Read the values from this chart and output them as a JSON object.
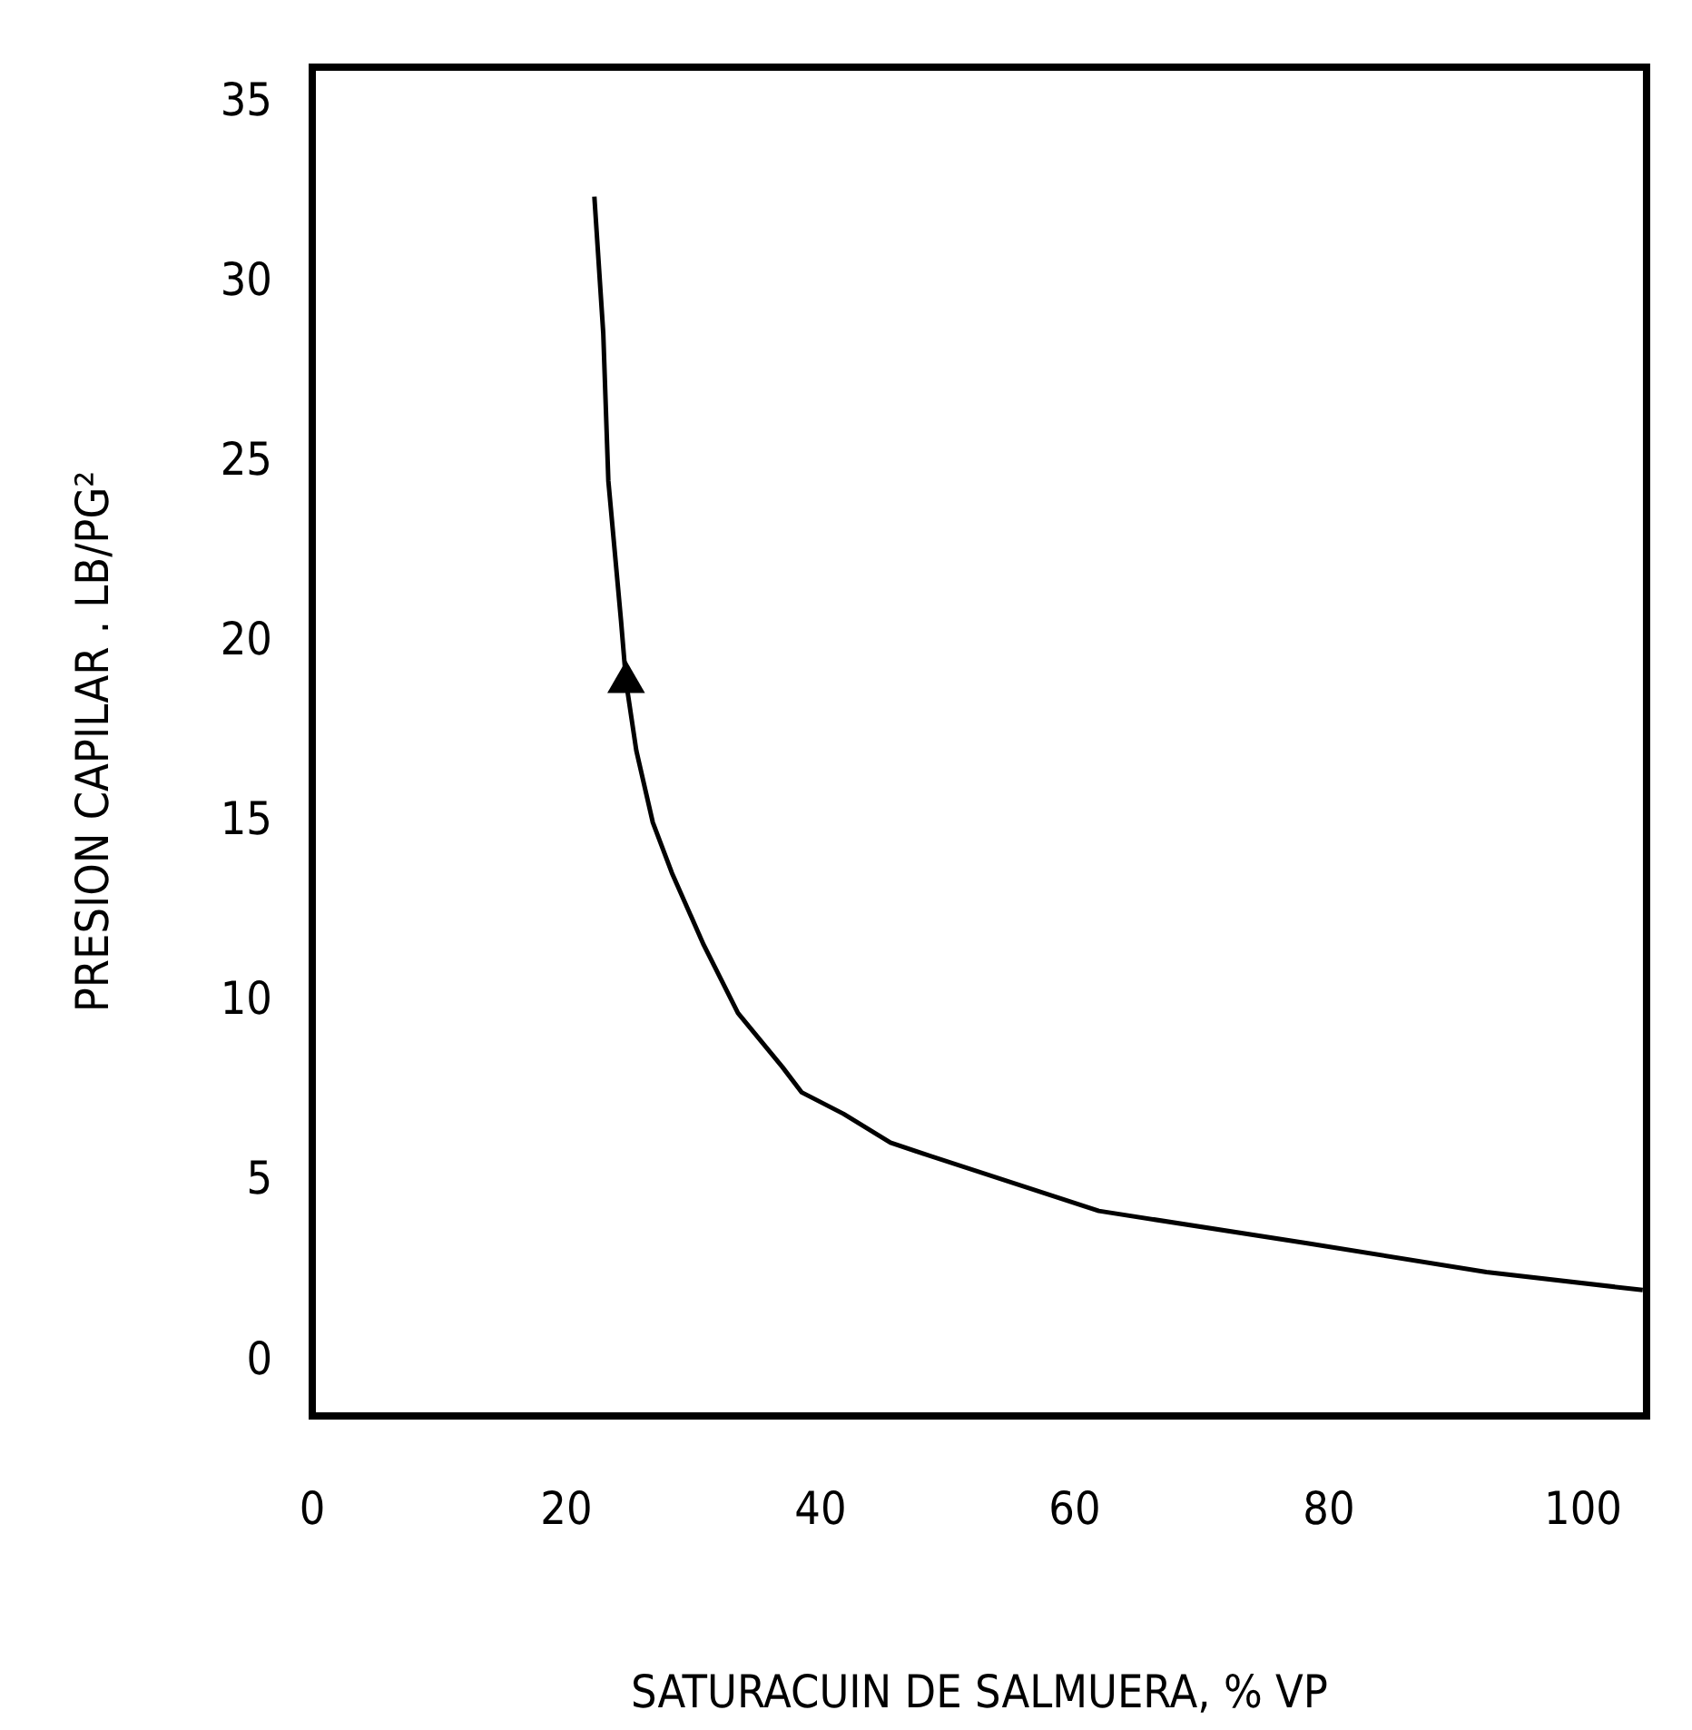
{
  "chart_data": {
    "type": "line",
    "xlabel": "SATURACUIN DE SALMUERA, % VP",
    "ylabel": "PRESION CAPILAR . LB/PG²",
    "xlim": [
      0,
      105
    ],
    "xticks": [
      0,
      20,
      40,
      60,
      80,
      100
    ],
    "ylim": [
      -1.5,
      36
    ],
    "yticks": [
      0,
      5,
      10,
      15,
      20,
      25,
      30,
      35
    ],
    "grid": false,
    "legend": false,
    "series": [
      {
        "type": "line",
        "color": "#000000",
        "marker": "none",
        "x": [
          22.2,
          22.9,
          23.3,
          24.3,
          24.7,
          25.5,
          26.8,
          28.3,
          30.8,
          33.5,
          37.0,
          38.5,
          41.8,
          45.5,
          48.0,
          61.9,
          78.3,
          92.4,
          104.7
        ],
        "values": [
          32.4,
          28.6,
          24.5,
          20.6,
          18.9,
          17.0,
          15.0,
          13.6,
          11.6,
          9.7,
          8.2,
          7.5,
          6.9,
          6.1,
          5.8,
          4.2,
          3.3,
          2.5,
          2.0
        ]
      },
      {
        "type": "scatter",
        "color": "#000000",
        "marker": "triangle",
        "x": [
          24.7
        ],
        "values": [
          18.9
        ]
      }
    ]
  }
}
